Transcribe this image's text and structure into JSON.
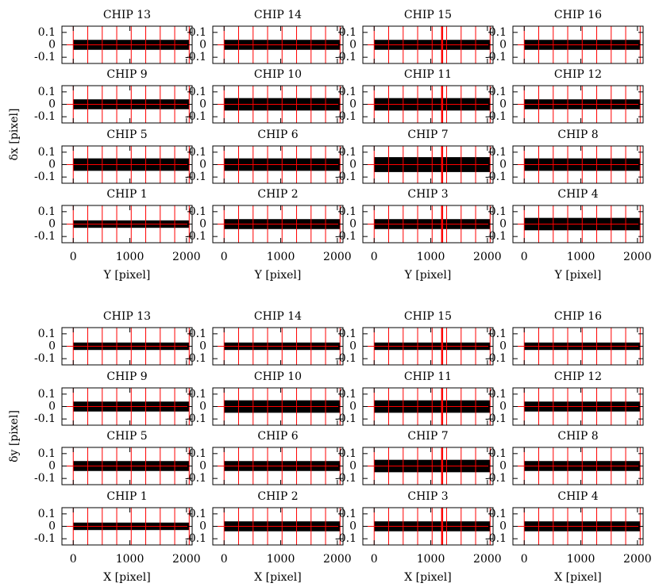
{
  "chart_data": [
    {
      "type": "scatter",
      "ylabel": "δx [pixel]",
      "xlabel": "Y [pixel]",
      "xlim": [
        -200,
        2100
      ],
      "ylim": [
        -0.15,
        0.15
      ],
      "xticks": [
        0,
        1000,
        2000
      ],
      "yticks": [
        -0.1,
        0,
        0.1
      ],
      "color": "#000000",
      "line_color": "#ff0000",
      "red_lines_x": [
        0,
        256,
        512,
        768,
        1024,
        1280,
        1536,
        1792,
        2048
      ],
      "center_line_y": 0,
      "panels": [
        {
          "title": "CHIP 13",
          "spread": [
            -0.04,
            0.04
          ]
        },
        {
          "title": "CHIP 14",
          "spread": [
            -0.04,
            0.04
          ]
        },
        {
          "title": "CHIP 15",
          "spread": [
            -0.04,
            0.04
          ],
          "thick_line_x": 1200
        },
        {
          "title": "CHIP 16",
          "spread": [
            -0.04,
            0.04
          ]
        },
        {
          "title": "CHIP 9",
          "spread": [
            -0.04,
            0.04
          ]
        },
        {
          "title": "CHIP 10",
          "spread": [
            -0.05,
            0.05
          ]
        },
        {
          "title": "CHIP 11",
          "spread": [
            -0.05,
            0.05
          ],
          "thick_line_x": 1200
        },
        {
          "title": "CHIP 12",
          "spread": [
            -0.04,
            0.04
          ]
        },
        {
          "title": "CHIP 5",
          "spread": [
            -0.05,
            0.05
          ]
        },
        {
          "title": "CHIP 6",
          "spread": [
            -0.05,
            0.05
          ]
        },
        {
          "title": "CHIP 7",
          "spread": [
            -0.06,
            0.06
          ],
          "thick_line_x": 1200
        },
        {
          "title": "CHIP 8",
          "spread": [
            -0.05,
            0.05
          ]
        },
        {
          "title": "CHIP 1",
          "spread": [
            -0.03,
            0.03
          ]
        },
        {
          "title": "CHIP 2",
          "spread": [
            -0.04,
            0.04
          ]
        },
        {
          "title": "CHIP 3",
          "spread": [
            -0.04,
            0.04
          ],
          "thick_line_x": 1200
        },
        {
          "title": "CHIP 4",
          "spread": [
            -0.05,
            0.05
          ]
        }
      ]
    },
    {
      "type": "scatter",
      "ylabel": "δy [pixel]",
      "xlabel": "X [pixel]",
      "xlim": [
        -200,
        2100
      ],
      "ylim": [
        -0.15,
        0.15
      ],
      "xticks": [
        0,
        1000,
        2000
      ],
      "yticks": [
        -0.1,
        0,
        0.1
      ],
      "color": "#000000",
      "line_color": "#ff0000",
      "red_lines_x": [
        0,
        256,
        512,
        768,
        1024,
        1280,
        1536,
        1792,
        2048
      ],
      "center_line_y": 0,
      "panels": [
        {
          "title": "CHIP 13",
          "spread": [
            -0.03,
            0.03
          ]
        },
        {
          "title": "CHIP 14",
          "spread": [
            -0.03,
            0.03
          ]
        },
        {
          "title": "CHIP 15",
          "spread": [
            -0.03,
            0.03
          ],
          "thick_line_x": 1200
        },
        {
          "title": "CHIP 16",
          "spread": [
            -0.03,
            0.03
          ]
        },
        {
          "title": "CHIP 9",
          "spread": [
            -0.04,
            0.04
          ]
        },
        {
          "title": "CHIP 10",
          "spread": [
            -0.05,
            0.05
          ]
        },
        {
          "title": "CHIP 11",
          "spread": [
            -0.05,
            0.05
          ],
          "thick_line_x": 1200
        },
        {
          "title": "CHIP 12",
          "spread": [
            -0.04,
            0.04
          ]
        },
        {
          "title": "CHIP 5",
          "spread": [
            -0.04,
            0.04
          ]
        },
        {
          "title": "CHIP 6",
          "spread": [
            -0.04,
            0.04
          ]
        },
        {
          "title": "CHIP 7",
          "spread": [
            -0.05,
            0.05
          ],
          "thick_line_x": 1200
        },
        {
          "title": "CHIP 8",
          "spread": [
            -0.04,
            0.04
          ]
        },
        {
          "title": "CHIP 1",
          "spread": [
            -0.03,
            0.03
          ]
        },
        {
          "title": "CHIP 2",
          "spread": [
            -0.04,
            0.04
          ]
        },
        {
          "title": "CHIP 3",
          "spread": [
            -0.04,
            0.04
          ],
          "thick_line_x": 1200
        },
        {
          "title": "CHIP 4",
          "spread": [
            -0.04,
            0.04
          ]
        }
      ]
    }
  ]
}
